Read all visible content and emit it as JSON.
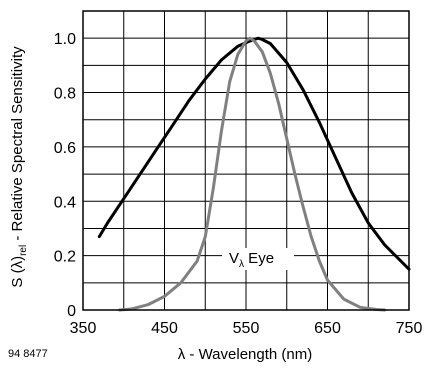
{
  "chart_data": {
    "type": "line",
    "ylabel": {
      "main": "S (λ)",
      "sub": "rel",
      "rest": " - Relative Spectral Sensitivity"
    },
    "xlabel": "λ - Wavelength (nm)",
    "xlim": [
      350,
      750
    ],
    "ylim": [
      0,
      1.1
    ],
    "xticks": [
      "350",
      "450",
      "550",
      "650",
      "750"
    ],
    "yticks": [
      "0",
      "0.2",
      "0.4",
      "0.6",
      "0.8",
      "1.0"
    ],
    "grid": true,
    "annotation": {
      "main": "V",
      "sub": "λ",
      "rest": " Eye"
    },
    "footnote": "94 8477",
    "series": [
      {
        "color": "#000000",
        "x": [
          370,
          380,
          400,
          420,
          440,
          460,
          480,
          500,
          520,
          540,
          555,
          565,
          570,
          580,
          600,
          620,
          640,
          660,
          680,
          700,
          720,
          750
        ],
        "y": [
          0.27,
          0.32,
          0.41,
          0.5,
          0.59,
          0.68,
          0.77,
          0.85,
          0.92,
          0.97,
          0.99,
          1.0,
          0.995,
          0.98,
          0.91,
          0.81,
          0.69,
          0.56,
          0.43,
          0.32,
          0.24,
          0.15
        ]
      },
      {
        "color": "#808080",
        "x": [
          395,
          410,
          430,
          450,
          470,
          490,
          500,
          510,
          520,
          530,
          540,
          550,
          555,
          560,
          570,
          580,
          590,
          600,
          610,
          620,
          630,
          640,
          650,
          670,
          690,
          710,
          720
        ],
        "y": [
          0.0,
          0.004,
          0.02,
          0.05,
          0.1,
          0.18,
          0.27,
          0.45,
          0.66,
          0.84,
          0.94,
          0.99,
          1.0,
          0.99,
          0.95,
          0.87,
          0.76,
          0.63,
          0.5,
          0.38,
          0.27,
          0.18,
          0.11,
          0.04,
          0.01,
          0.002,
          0.0
        ]
      }
    ]
  }
}
